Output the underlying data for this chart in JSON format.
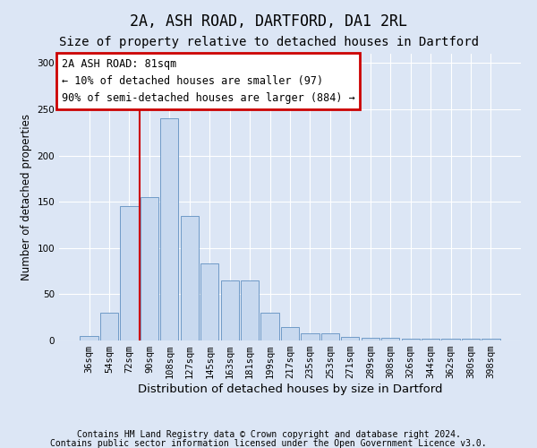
{
  "title1": "2A, ASH ROAD, DARTFORD, DA1 2RL",
  "title2": "Size of property relative to detached houses in Dartford",
  "xlabel": "Distribution of detached houses by size in Dartford",
  "ylabel": "Number of detached properties",
  "categories": [
    "36sqm",
    "54sqm",
    "72sqm",
    "90sqm",
    "108sqm",
    "127sqm",
    "145sqm",
    "163sqm",
    "181sqm",
    "199sqm",
    "217sqm",
    "235sqm",
    "253sqm",
    "271sqm",
    "289sqm",
    "308sqm",
    "326sqm",
    "344sqm",
    "362sqm",
    "380sqm",
    "398sqm"
  ],
  "values": [
    5,
    30,
    145,
    155,
    240,
    135,
    83,
    65,
    65,
    30,
    15,
    8,
    8,
    4,
    3,
    3,
    2,
    2,
    2,
    2,
    2
  ],
  "bar_color": "#c8d9ef",
  "bar_edge_color": "#6090c0",
  "vline_x": 2.5,
  "vline_color": "#cc0000",
  "annotation_text": "2A ASH ROAD: 81sqm\n← 10% of detached houses are smaller (97)\n90% of semi-detached houses are larger (884) →",
  "annotation_box_color": "#cc0000",
  "ylim": [
    0,
    310
  ],
  "yticks": [
    0,
    50,
    100,
    150,
    200,
    250,
    300
  ],
  "bg_color": "#dce6f5",
  "plot_bg_color": "#dce6f5",
  "footer1": "Contains HM Land Registry data © Crown copyright and database right 2024.",
  "footer2": "Contains public sector information licensed under the Open Government Licence v3.0.",
  "title1_fontsize": 12,
  "title2_fontsize": 10,
  "xlabel_fontsize": 9.5,
  "ylabel_fontsize": 8.5,
  "tick_fontsize": 7.5,
  "footer_fontsize": 7,
  "annotation_fontsize": 8.5
}
